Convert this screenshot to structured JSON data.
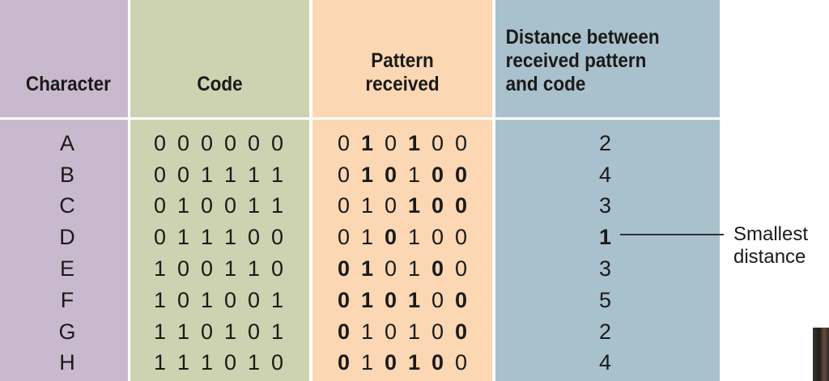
{
  "headers": {
    "character": "Character",
    "code": "Code",
    "pattern": "Pattern\nreceived",
    "distance": "Distance between\nreceived pattern\nand code"
  },
  "rows": [
    {
      "character": "A",
      "code": [
        "0",
        "0",
        "0",
        "0",
        "0",
        "0"
      ],
      "pattern": [
        "0",
        "1",
        "0",
        "1",
        "0",
        "0"
      ],
      "pattern_bold": [
        false,
        true,
        false,
        true,
        false,
        false
      ],
      "distance": "2",
      "distance_bold": false
    },
    {
      "character": "B",
      "code": [
        "0",
        "0",
        "1",
        "1",
        "1",
        "1"
      ],
      "pattern": [
        "0",
        "1",
        "0",
        "1",
        "0",
        "0"
      ],
      "pattern_bold": [
        false,
        true,
        true,
        false,
        true,
        true
      ],
      "distance": "4",
      "distance_bold": false
    },
    {
      "character": "C",
      "code": [
        "0",
        "1",
        "0",
        "0",
        "1",
        "1"
      ],
      "pattern": [
        "0",
        "1",
        "0",
        "1",
        "0",
        "0"
      ],
      "pattern_bold": [
        false,
        false,
        false,
        true,
        true,
        true
      ],
      "distance": "3",
      "distance_bold": false
    },
    {
      "character": "D",
      "code": [
        "0",
        "1",
        "1",
        "1",
        "0",
        "0"
      ],
      "pattern": [
        "0",
        "1",
        "0",
        "1",
        "0",
        "0"
      ],
      "pattern_bold": [
        false,
        false,
        true,
        false,
        false,
        false
      ],
      "distance": "1",
      "distance_bold": true
    },
    {
      "character": "E",
      "code": [
        "1",
        "0",
        "0",
        "1",
        "1",
        "0"
      ],
      "pattern": [
        "0",
        "1",
        "0",
        "1",
        "0",
        "0"
      ],
      "pattern_bold": [
        true,
        true,
        false,
        false,
        true,
        false
      ],
      "distance": "3",
      "distance_bold": false
    },
    {
      "character": "F",
      "code": [
        "1",
        "0",
        "1",
        "0",
        "0",
        "1"
      ],
      "pattern": [
        "0",
        "1",
        "0",
        "1",
        "0",
        "0"
      ],
      "pattern_bold": [
        true,
        true,
        true,
        true,
        false,
        true
      ],
      "distance": "5",
      "distance_bold": false
    },
    {
      "character": "G",
      "code": [
        "1",
        "1",
        "0",
        "1",
        "0",
        "1"
      ],
      "pattern": [
        "0",
        "1",
        "0",
        "1",
        "0",
        "0"
      ],
      "pattern_bold": [
        true,
        false,
        false,
        false,
        false,
        true
      ],
      "distance": "2",
      "distance_bold": false
    },
    {
      "character": "H",
      "code": [
        "1",
        "1",
        "1",
        "0",
        "1",
        "0"
      ],
      "pattern": [
        "0",
        "1",
        "0",
        "1",
        "0",
        "0"
      ],
      "pattern_bold": [
        true,
        false,
        true,
        true,
        true,
        false
      ],
      "distance": "4",
      "distance_bold": false
    }
  ],
  "annotation": {
    "line1": "Smallest",
    "line2": "distance"
  }
}
